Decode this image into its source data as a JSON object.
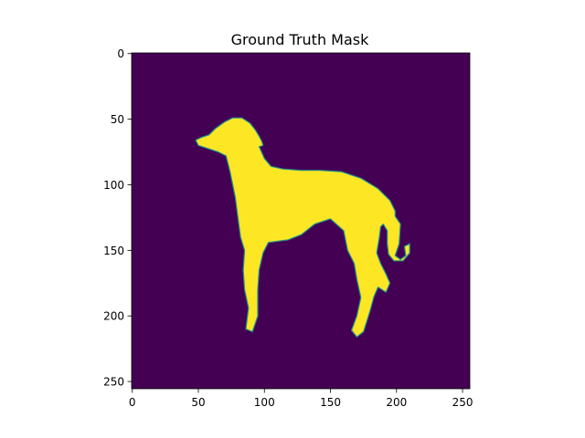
{
  "chart_data": {
    "type": "heatmap",
    "title": "Ground Truth Mask",
    "image_size": [
      256,
      256
    ],
    "xlim": [
      -0.5,
      255.5
    ],
    "ylim": [
      255.5,
      -0.5
    ],
    "xticks": [
      0,
      50,
      100,
      150,
      200,
      250
    ],
    "yticks": [
      0,
      50,
      100,
      150,
      200,
      250
    ],
    "xtick_labels": [
      "0",
      "50",
      "100",
      "150",
      "200",
      "250"
    ],
    "ytick_labels": [
      "0",
      "50",
      "100",
      "150",
      "200",
      "250"
    ],
    "colormap": "viridis",
    "values_range": [
      0,
      1
    ],
    "background_value": 0,
    "mask_value": 1,
    "colors": {
      "background": "#440154",
      "mask": "#fde725",
      "edge": "#21918c"
    },
    "mask_shape": "dog silhouette (greyhound/whippet) facing left, standing",
    "mask_outline": [
      [
        48,
        66
      ],
      [
        52,
        64
      ],
      [
        58,
        62
      ],
      [
        63,
        57
      ],
      [
        70,
        52
      ],
      [
        76,
        49
      ],
      [
        83,
        49
      ],
      [
        89,
        53
      ],
      [
        93,
        58
      ],
      [
        96,
        63
      ],
      [
        98,
        67
      ],
      [
        99,
        70
      ],
      [
        96,
        71
      ],
      [
        100,
        80
      ],
      [
        105,
        86
      ],
      [
        114,
        88
      ],
      [
        128,
        89
      ],
      [
        142,
        89
      ],
      [
        158,
        90
      ],
      [
        173,
        95
      ],
      [
        186,
        103
      ],
      [
        195,
        112
      ],
      [
        199,
        120
      ],
      [
        199,
        124
      ],
      [
        203,
        130
      ],
      [
        202,
        145
      ],
      [
        199,
        154
      ],
      [
        203,
        157
      ],
      [
        207,
        154
      ],
      [
        206,
        147
      ],
      [
        210,
        145
      ],
      [
        210,
        152
      ],
      [
        205,
        158
      ],
      [
        198,
        158
      ],
      [
        194,
        153
      ],
      [
        193,
        145
      ],
      [
        193,
        135
      ],
      [
        190,
        130
      ],
      [
        188,
        132
      ],
      [
        187,
        140
      ],
      [
        185,
        152
      ],
      [
        188,
        160
      ],
      [
        192,
        168
      ],
      [
        195,
        175
      ],
      [
        192,
        182
      ],
      [
        186,
        178
      ],
      [
        183,
        185
      ],
      [
        180,
        196
      ],
      [
        175,
        212
      ],
      [
        170,
        216
      ],
      [
        166,
        211
      ],
      [
        170,
        200
      ],
      [
        173,
        186
      ],
      [
        170,
        172
      ],
      [
        168,
        160
      ],
      [
        163,
        150
      ],
      [
        160,
        135
      ],
      [
        150,
        126
      ],
      [
        138,
        130
      ],
      [
        128,
        138
      ],
      [
        118,
        142
      ],
      [
        103,
        144
      ],
      [
        99,
        152
      ],
      [
        96,
        165
      ],
      [
        95,
        180
      ],
      [
        95,
        200
      ],
      [
        91,
        212
      ],
      [
        86,
        210
      ],
      [
        88,
        194
      ],
      [
        85,
        180
      ],
      [
        84,
        165
      ],
      [
        85,
        150
      ],
      [
        82,
        140
      ],
      [
        80,
        125
      ],
      [
        78,
        110
      ],
      [
        76,
        100
      ],
      [
        74,
        90
      ],
      [
        71,
        78
      ],
      [
        65,
        75
      ],
      [
        56,
        72
      ],
      [
        50,
        70
      ]
    ]
  }
}
